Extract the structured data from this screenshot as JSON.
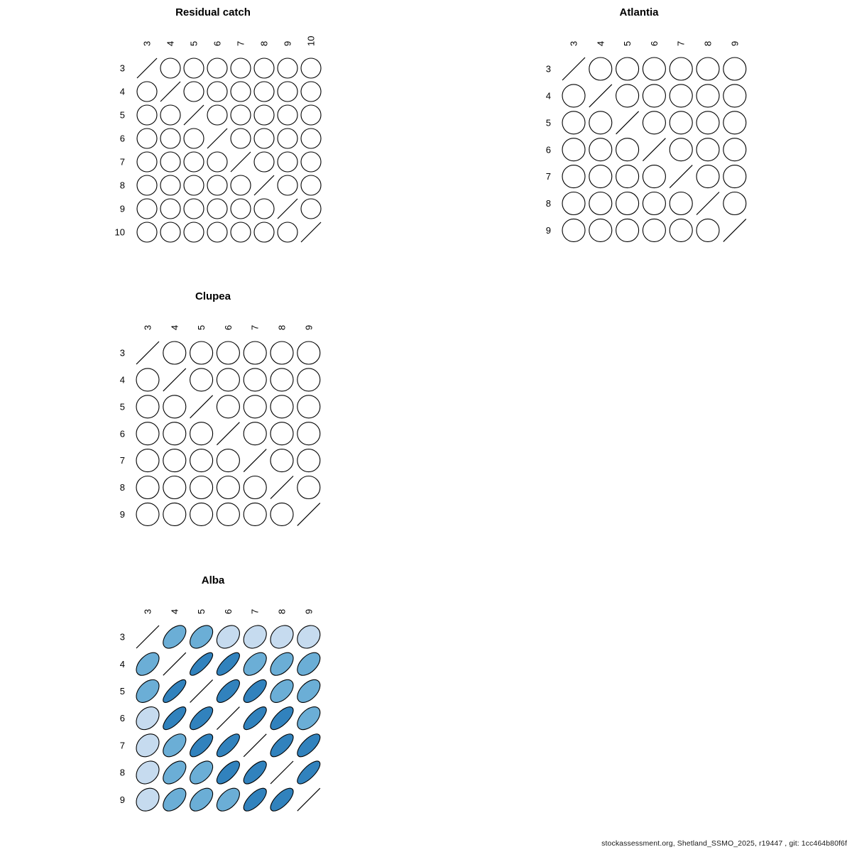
{
  "figure": {
    "background": "#FFFFFF",
    "footer": "stockassessment.org, Shetland_SSMO_2025, r19447 , git: 1cc464b80f6f"
  },
  "style": {
    "outline_color": "#000000",
    "label_color": "#000000",
    "correlation_fill_scale": {
      "breaks": [
        0.05,
        0.4,
        0.65
      ],
      "colors": [
        "#FFFFFF",
        "#C6DBEF",
        "#6BAED6",
        "#3182BD"
      ]
    }
  },
  "chart_data": [
    {
      "type": "heatmap",
      "subtype": "correlation-ellipse-matrix",
      "title": "Residual catch",
      "ages": [
        3,
        4,
        5,
        6,
        7,
        8,
        9,
        10
      ],
      "matrix": [
        [
          1,
          0,
          0,
          0,
          0,
          0,
          0,
          0
        ],
        [
          0,
          1,
          0,
          0,
          0,
          0,
          0,
          0
        ],
        [
          0,
          0,
          1,
          0,
          0,
          0,
          0,
          0
        ],
        [
          0,
          0,
          0,
          1,
          0,
          0,
          0,
          0
        ],
        [
          0,
          0,
          0,
          0,
          1,
          0,
          0,
          0
        ],
        [
          0,
          0,
          0,
          0,
          0,
          1,
          0,
          0
        ],
        [
          0,
          0,
          0,
          0,
          0,
          0,
          1,
          0
        ],
        [
          0,
          0,
          0,
          0,
          0,
          0,
          0,
          1
        ]
      ]
    },
    {
      "type": "heatmap",
      "subtype": "correlation-ellipse-matrix",
      "title": "Atlantia",
      "ages": [
        3,
        4,
        5,
        6,
        7,
        8,
        9
      ],
      "matrix": [
        [
          1,
          0,
          0,
          0,
          0,
          0,
          0
        ],
        [
          0,
          1,
          0,
          0,
          0,
          0,
          0
        ],
        [
          0,
          0,
          1,
          0,
          0,
          0,
          0
        ],
        [
          0,
          0,
          0,
          1,
          0,
          0,
          0
        ],
        [
          0,
          0,
          0,
          0,
          1,
          0,
          0
        ],
        [
          0,
          0,
          0,
          0,
          0,
          1,
          0
        ],
        [
          0,
          0,
          0,
          0,
          0,
          0,
          1
        ]
      ]
    },
    {
      "type": "heatmap",
      "subtype": "correlation-ellipse-matrix",
      "title": "Clupea",
      "ages": [
        3,
        4,
        5,
        6,
        7,
        8,
        9
      ],
      "matrix": [
        [
          1,
          0,
          0,
          0,
          0,
          0,
          0
        ],
        [
          0,
          1,
          0,
          0,
          0,
          0,
          0
        ],
        [
          0,
          0,
          1,
          0,
          0,
          0,
          0
        ],
        [
          0,
          0,
          0,
          1,
          0,
          0,
          0
        ],
        [
          0,
          0,
          0,
          0,
          1,
          0,
          0
        ],
        [
          0,
          0,
          0,
          0,
          0,
          1,
          0
        ],
        [
          0,
          0,
          0,
          0,
          0,
          0,
          1
        ]
      ]
    },
    {
      "type": "heatmap",
      "subtype": "correlation-ellipse-matrix",
      "title": "Alba",
      "ages": [
        3,
        4,
        5,
        6,
        7,
        8,
        9
      ],
      "matrix": [
        [
          1.0,
          0.5,
          0.45,
          0.3,
          0.25,
          0.25,
          0.2
        ],
        [
          0.5,
          1.0,
          0.8,
          0.75,
          0.5,
          0.5,
          0.5
        ],
        [
          0.45,
          0.8,
          1.0,
          0.7,
          0.7,
          0.5,
          0.5
        ],
        [
          0.3,
          0.75,
          0.7,
          1.0,
          0.75,
          0.7,
          0.5
        ],
        [
          0.25,
          0.5,
          0.7,
          0.75,
          1.0,
          0.7,
          0.7
        ],
        [
          0.25,
          0.5,
          0.5,
          0.7,
          0.7,
          1.0,
          0.75
        ],
        [
          0.2,
          0.5,
          0.5,
          0.5,
          0.7,
          0.7,
          1.0
        ]
      ]
    }
  ]
}
